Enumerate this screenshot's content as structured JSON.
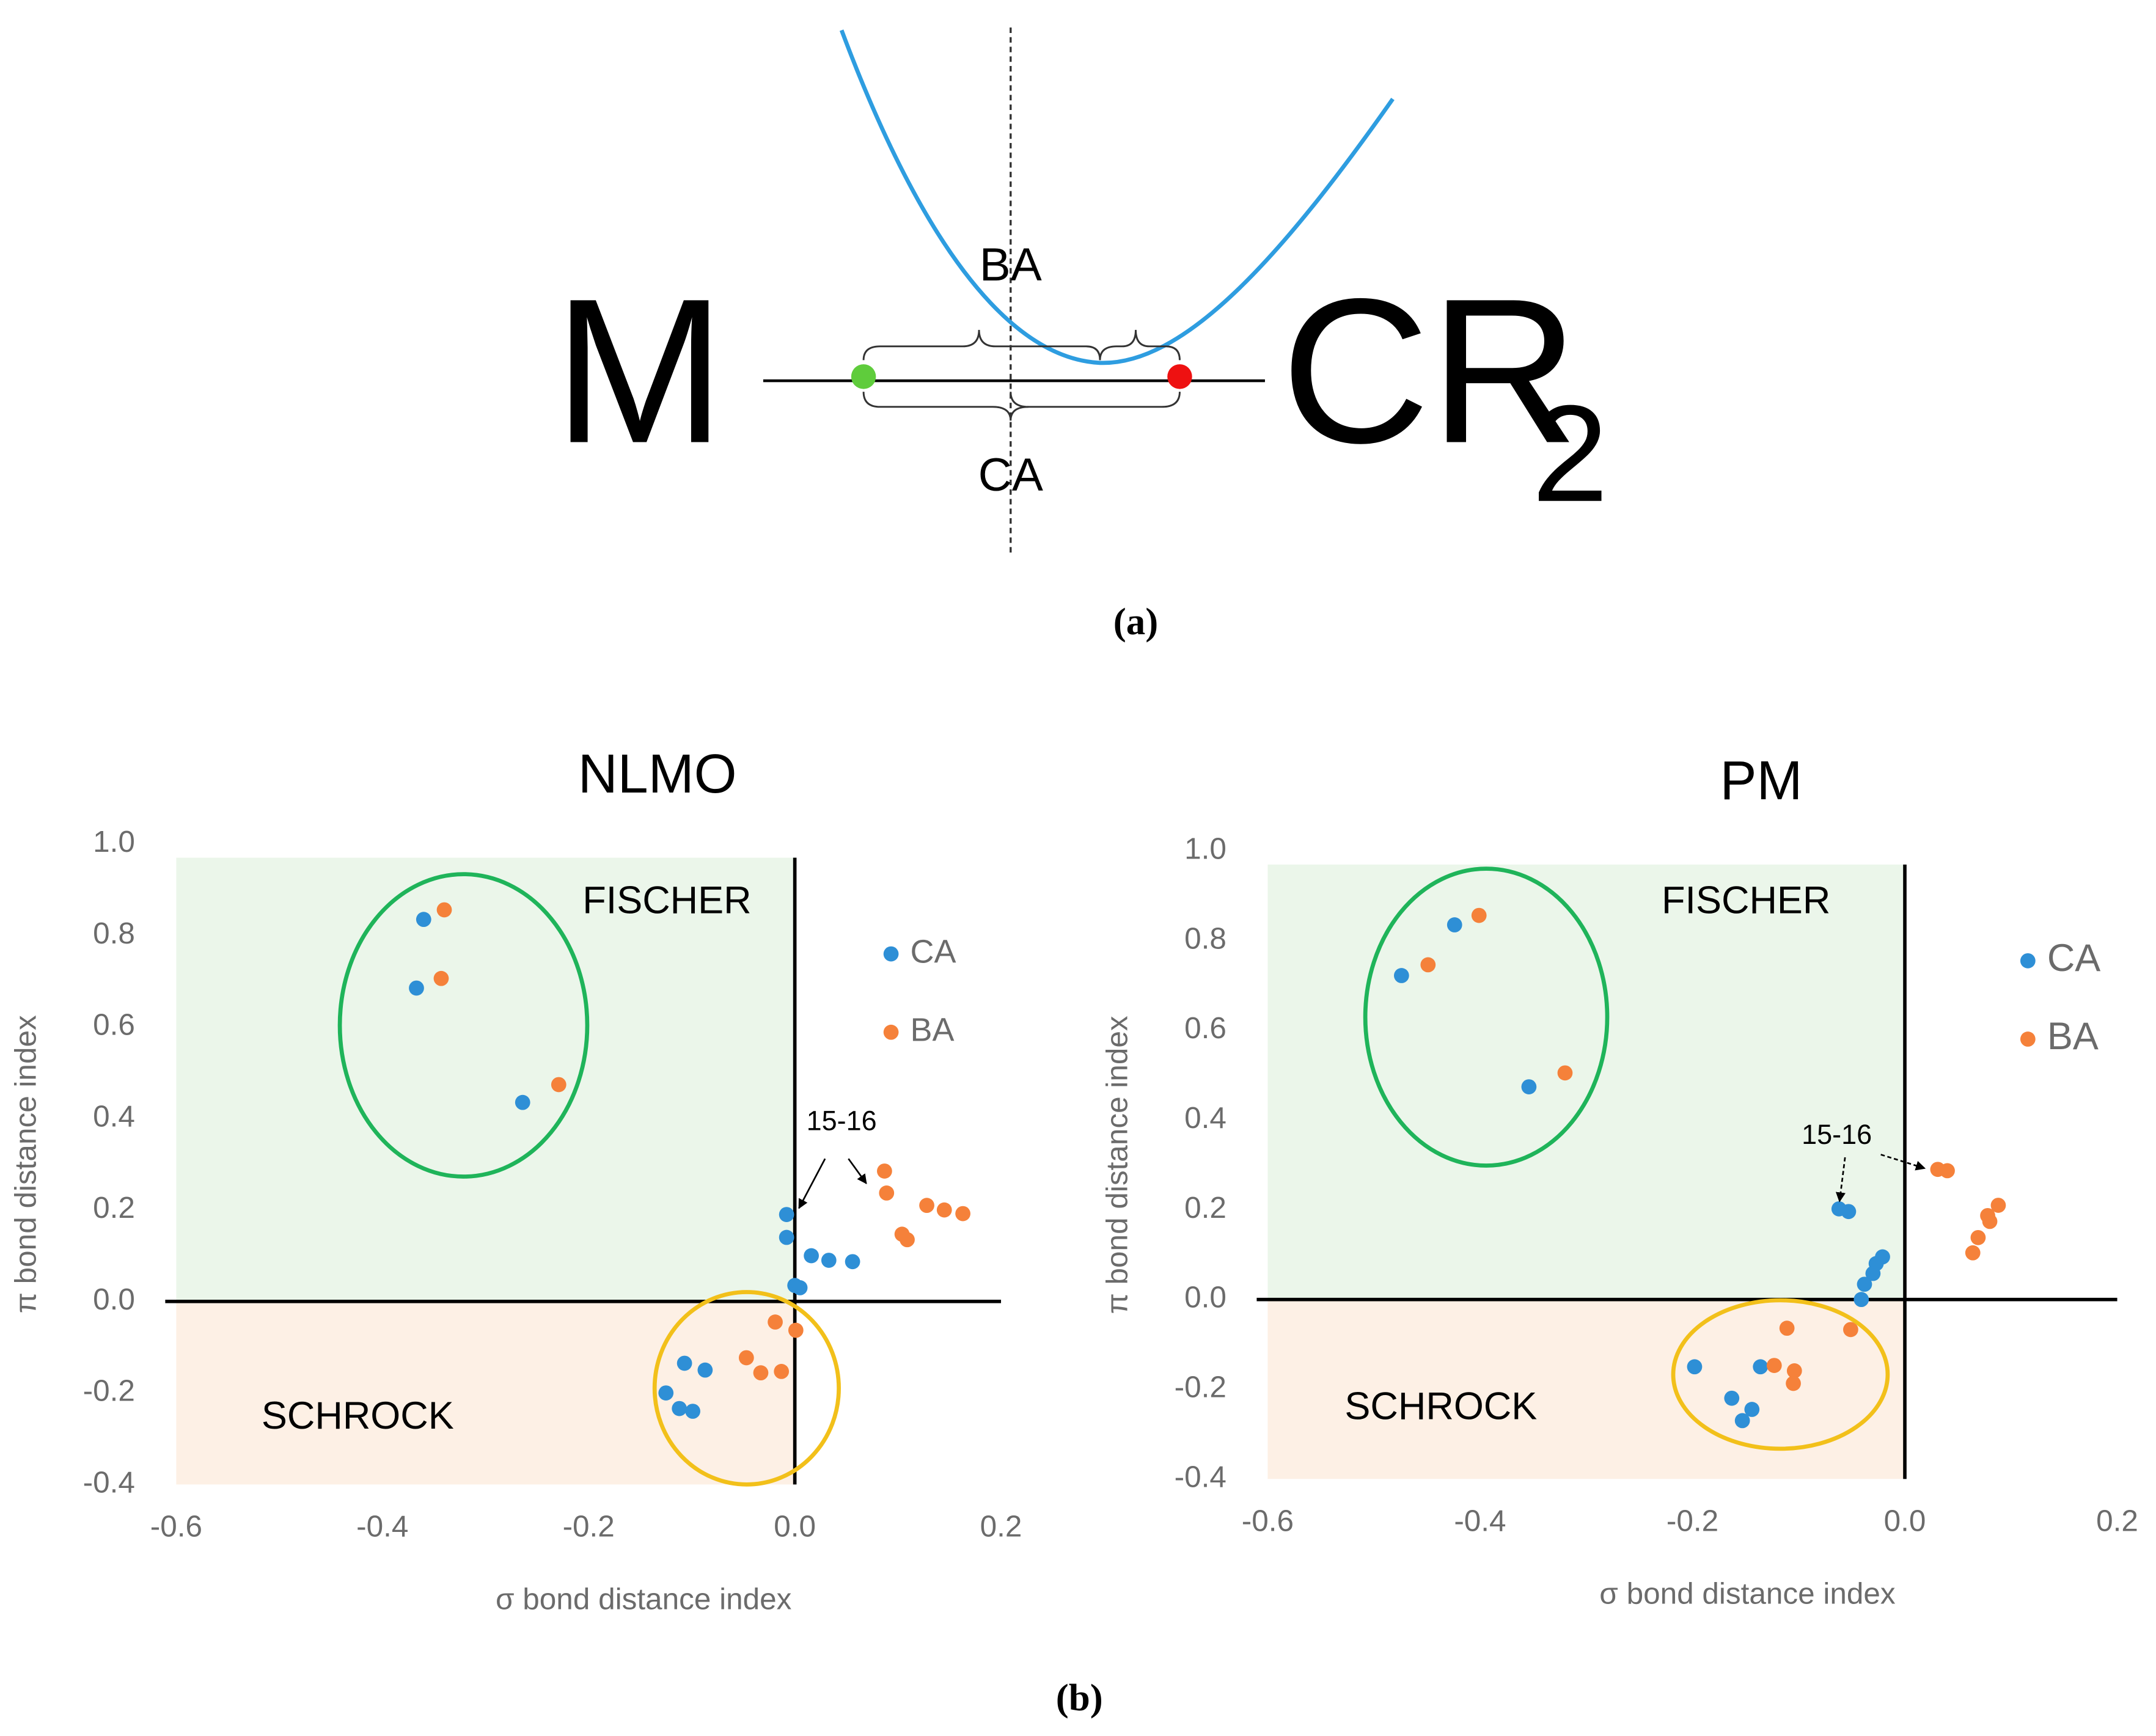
{
  "figure": {
    "m_label": "M",
    "cr_label": "CR",
    "cr_subscript": "2",
    "ba_label": "BA",
    "ca_label": "CA",
    "caption_a": "(a)",
    "caption_b": "(b)"
  },
  "chart_data": [
    {
      "type": "scatter",
      "title": "NLMO",
      "x_label": "σ bond distance index",
      "y_label": "π bond distance index",
      "xlim": [
        -0.6,
        0.2
      ],
      "ylim": [
        -0.4,
        1.0
      ],
      "xticks": [
        -0.6,
        -0.4,
        -0.2,
        {
          "value": 0,
          "label": "0.0"
        },
        0.2
      ],
      "yticks": [
        -0.4,
        -0.2,
        {
          "value": 0,
          "label": "0.0"
        },
        0.2,
        0.4,
        0.6,
        0.8,
        {
          "value": 1,
          "label": "1.0"
        }
      ],
      "grid": false,
      "legend": "right",
      "annotations": [
        "FISCHER",
        "SCHROCK",
        "15-16"
      ],
      "series": [
        {
          "name": "CA",
          "color": "#2e8fd6",
          "x": [
            -0.36,
            -0.367,
            -0.264,
            -0.008,
            -0.008,
            0,
            0.005,
            0.016,
            0.033,
            0.056,
            -0.107,
            -0.087,
            -0.125,
            -0.112,
            -0.099
          ],
          "values": [
            0.835,
            0.685,
            0.435,
            0.19,
            0.14,
            0.035,
            0.03,
            0.1,
            0.09,
            0.087,
            -0.135,
            -0.15,
            -0.2,
            -0.234,
            -0.24
          ]
        },
        {
          "name": "BA",
          "color": "#f5813a",
          "x": [
            -0.34,
            -0.343,
            -0.229,
            0.087,
            0.089,
            0.104,
            0.109,
            0.128,
            0.145,
            0.163,
            -0.019,
            0.001,
            -0.047,
            -0.033,
            -0.013
          ],
          "values": [
            0.856,
            0.706,
            0.474,
            0.285,
            0.237,
            0.147,
            0.135,
            0.21,
            0.2,
            0.192,
            -0.045,
            -0.063,
            -0.123,
            -0.156,
            -0.153
          ]
        }
      ]
    },
    {
      "type": "scatter",
      "title": "PM",
      "x_label": "σ bond distance index",
      "y_label": "π bond distance index",
      "xlim": [
        -0.6,
        0.2
      ],
      "ylim": [
        -0.4,
        1.0
      ],
      "xticks": [
        -0.6,
        -0.4,
        -0.2,
        {
          "value": 0,
          "label": "0.0"
        },
        0.2
      ],
      "yticks": [
        -0.4,
        -0.2,
        {
          "value": 0,
          "label": "0.0"
        },
        0.2,
        0.4,
        0.6,
        0.8,
        {
          "value": 1,
          "label": "1.0"
        }
      ],
      "grid": false,
      "legend": "right",
      "annotations": [
        "FISCHER",
        "SCHROCK",
        "15-16"
      ],
      "series": [
        {
          "name": "CA",
          "color": "#2e8fd6",
          "x": [
            -0.474,
            -0.424,
            -0.354,
            -0.062,
            -0.053,
            -0.021,
            -0.027,
            -0.03,
            -0.038,
            -0.041,
            -0.198,
            -0.136,
            -0.163,
            -0.144,
            -0.153
          ],
          "values": [
            0.722,
            0.835,
            0.474,
            0.202,
            0.196,
            0.095,
            0.08,
            0.058,
            0.034,
            0.0,
            -0.15,
            -0.15,
            -0.22,
            -0.245,
            -0.27
          ]
        },
        {
          "name": "BA",
          "color": "#f5813a",
          "x": [
            -0.449,
            -0.401,
            -0.32,
            0.031,
            0.04,
            0.088,
            0.078,
            0.08,
            0.069,
            0.064,
            -0.111,
            -0.051,
            -0.123,
            -0.104,
            -0.105
          ],
          "values": [
            0.746,
            0.856,
            0.505,
            0.29,
            0.287,
            0.21,
            0.187,
            0.174,
            0.138,
            0.104,
            -0.064,
            -0.067,
            -0.147,
            -0.159,
            -0.187
          ]
        }
      ]
    }
  ]
}
